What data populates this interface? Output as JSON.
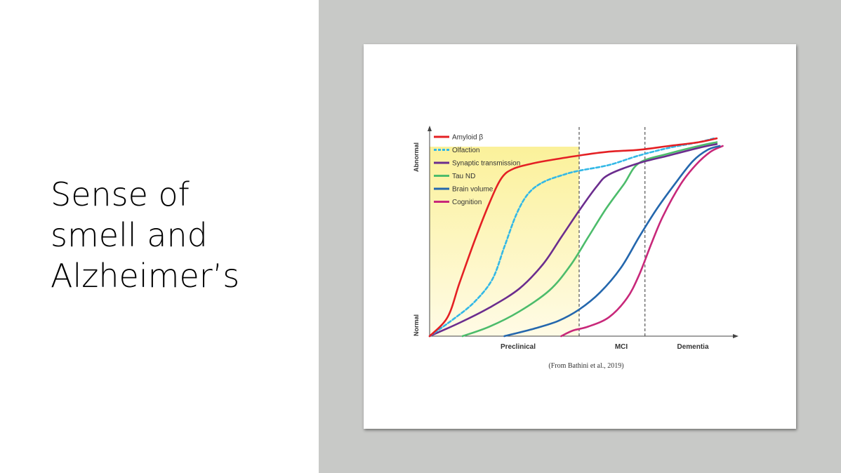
{
  "slide": {
    "title_lines": [
      "Sense of",
      "smell and",
      "Alzheimer’s"
    ]
  },
  "colors": {
    "slide_background": "#ffffff",
    "panel_background": "#c8c9c7",
    "shading_top": "#fbf19a",
    "shading_bottom": "#fffbe6"
  },
  "chart_data": {
    "type": "line",
    "y_axis": {
      "ticks": [
        "Normal",
        "Abnormal"
      ],
      "ylim": [
        0,
        1
      ]
    },
    "x_axis": {
      "stages": [
        "Preclinical",
        "MCI",
        "Dementia"
      ],
      "xlim": [
        0,
        10
      ],
      "stage_boundaries": [
        5.0,
        7.2
      ]
    },
    "shaded_region": {
      "x": [
        0,
        5.0
      ],
      "label": ""
    },
    "series": [
      {
        "name": "Amyloid β",
        "color": "#e42024",
        "dashed": false,
        "points": [
          [
            0,
            0
          ],
          [
            0.6,
            0.1
          ],
          [
            1.0,
            0.28
          ],
          [
            1.5,
            0.5
          ],
          [
            2.0,
            0.7
          ],
          [
            2.4,
            0.83
          ],
          [
            2.8,
            0.88
          ],
          [
            3.5,
            0.91
          ],
          [
            4.2,
            0.93
          ],
          [
            5.0,
            0.95
          ],
          [
            6.0,
            0.97
          ],
          [
            7.0,
            0.98
          ],
          [
            8.0,
            1.0
          ],
          [
            9.0,
            1.02
          ],
          [
            9.6,
            1.04
          ]
        ]
      },
      {
        "name": "Olfaction",
        "color": "#33b8e6",
        "dashed": true,
        "points": [
          [
            0,
            0
          ],
          [
            0.8,
            0.09
          ],
          [
            1.5,
            0.18
          ],
          [
            2.1,
            0.3
          ],
          [
            2.5,
            0.47
          ],
          [
            2.9,
            0.64
          ],
          [
            3.3,
            0.75
          ],
          [
            3.8,
            0.81
          ],
          [
            4.5,
            0.85
          ],
          [
            5.0,
            0.87
          ],
          [
            6.0,
            0.9
          ],
          [
            7.0,
            0.95
          ],
          [
            8.0,
            0.99
          ],
          [
            9.0,
            1.02
          ],
          [
            9.5,
            1.04
          ]
        ]
      },
      {
        "name": "Synaptic transmission",
        "color": "#6b2d8e",
        "dashed": false,
        "points": [
          [
            0,
            0
          ],
          [
            1.0,
            0.07
          ],
          [
            2.0,
            0.15
          ],
          [
            3.0,
            0.25
          ],
          [
            3.8,
            0.38
          ],
          [
            4.4,
            0.52
          ],
          [
            5.0,
            0.66
          ],
          [
            5.6,
            0.79
          ],
          [
            6.0,
            0.85
          ],
          [
            7.0,
            0.91
          ],
          [
            8.0,
            0.95
          ],
          [
            9.0,
            0.99
          ],
          [
            9.6,
            1.01
          ]
        ]
      },
      {
        "name": "Tau ND",
        "color": "#4cbc6b",
        "dashed": false,
        "points": [
          [
            1.1,
            0
          ],
          [
            2.0,
            0.05
          ],
          [
            3.0,
            0.13
          ],
          [
            4.0,
            0.24
          ],
          [
            4.7,
            0.37
          ],
          [
            5.3,
            0.52
          ],
          [
            5.9,
            0.67
          ],
          [
            6.5,
            0.8
          ],
          [
            7.0,
            0.91
          ],
          [
            8.0,
            0.96
          ],
          [
            9.0,
            1.0
          ],
          [
            9.6,
            1.02
          ]
        ]
      },
      {
        "name": "Brain volume",
        "color": "#2467ad",
        "dashed": false,
        "points": [
          [
            2.5,
            0
          ],
          [
            3.5,
            0.04
          ],
          [
            4.3,
            0.08
          ],
          [
            5.0,
            0.14
          ],
          [
            5.7,
            0.23
          ],
          [
            6.4,
            0.36
          ],
          [
            7.0,
            0.52
          ],
          [
            7.6,
            0.67
          ],
          [
            8.2,
            0.8
          ],
          [
            8.8,
            0.92
          ],
          [
            9.3,
            0.98
          ],
          [
            9.7,
            1.0
          ]
        ]
      },
      {
        "name": "Cognition",
        "color": "#c8287a",
        "dashed": false,
        "points": [
          [
            4.4,
            0
          ],
          [
            4.8,
            0.03
          ],
          [
            5.3,
            0.05
          ],
          [
            6.0,
            0.1
          ],
          [
            6.6,
            0.2
          ],
          [
            7.0,
            0.32
          ],
          [
            7.4,
            0.48
          ],
          [
            7.8,
            0.63
          ],
          [
            8.4,
            0.8
          ],
          [
            8.9,
            0.9
          ],
          [
            9.4,
            0.97
          ],
          [
            9.8,
            1.0
          ]
        ]
      }
    ]
  },
  "figure": {
    "source_note": "(From Bathini et al., 2019)"
  }
}
